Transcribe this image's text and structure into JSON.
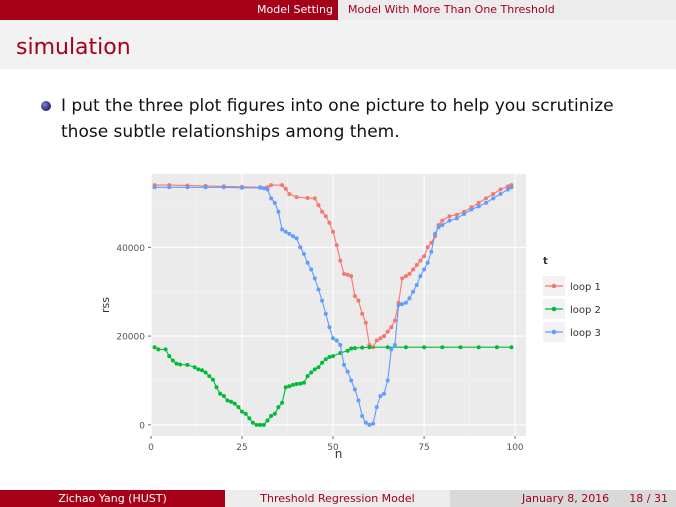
{
  "nav": {
    "section": "Model Setting",
    "subsection": "Model With More Than One Threshold"
  },
  "slide": {
    "title": "simulation",
    "bullet": "I put the three plot figures into one picture to help you scrutinize those subtle relationships among them."
  },
  "footer": {
    "author": "Zichao Yang  (HUST)",
    "talk_title": "Threshold Regression Model",
    "date": "January 8, 2016",
    "page": "18 / 31"
  },
  "colors": {
    "accent": "#a60019",
    "loop1": "#f8766d",
    "loop2": "#00ba38",
    "loop3": "#619cff",
    "panel": "#ebebeb"
  },
  "chart_data": {
    "type": "line",
    "xlabel": "n",
    "ylabel": "rss",
    "legend_title": "t",
    "legend_position": "right",
    "grid": true,
    "xlim": [
      0,
      103
    ],
    "ylim": [
      -2500,
      56500
    ],
    "xticks": [
      0,
      25,
      50,
      75,
      100
    ],
    "yticks": [
      0,
      20000,
      40000
    ],
    "series": [
      {
        "name": "loop 1",
        "color": "#f8766d",
        "points": [
          [
            1,
            54000
          ],
          [
            5,
            54000
          ],
          [
            10,
            53900
          ],
          [
            15,
            53800
          ],
          [
            20,
            53700
          ],
          [
            25,
            53600
          ],
          [
            30,
            53500
          ],
          [
            32,
            53500
          ],
          [
            33,
            54000
          ],
          [
            36,
            54000
          ],
          [
            37,
            53200
          ],
          [
            38,
            52000
          ],
          [
            40,
            51300
          ],
          [
            43,
            51100
          ],
          [
            45,
            51000
          ],
          [
            46,
            49500
          ],
          [
            47,
            48000
          ],
          [
            48,
            47000
          ],
          [
            49,
            45500
          ],
          [
            50,
            43500
          ],
          [
            51,
            40500
          ],
          [
            52,
            37000
          ],
          [
            53,
            34000
          ],
          [
            54,
            33800
          ],
          [
            55,
            33500
          ],
          [
            56,
            29000
          ],
          [
            57,
            28000
          ],
          [
            58,
            25000
          ],
          [
            59,
            23000
          ],
          [
            60,
            18000
          ],
          [
            61,
            17500
          ],
          [
            62,
            19000
          ],
          [
            63,
            19500
          ],
          [
            64,
            20000
          ],
          [
            65,
            21000
          ],
          [
            66,
            22000
          ],
          [
            67,
            23500
          ],
          [
            68,
            27500
          ],
          [
            69,
            33000
          ],
          [
            70,
            33500
          ],
          [
            71,
            34000
          ],
          [
            72,
            35000
          ],
          [
            73,
            36000
          ],
          [
            74,
            37000
          ],
          [
            75,
            38000
          ],
          [
            76,
            40000
          ],
          [
            77,
            41000
          ],
          [
            78,
            42500
          ],
          [
            79,
            45000
          ],
          [
            80,
            46000
          ],
          [
            82,
            47000
          ],
          [
            84,
            47300
          ],
          [
            86,
            48000
          ],
          [
            88,
            49000
          ],
          [
            90,
            50000
          ],
          [
            92,
            51000
          ],
          [
            94,
            52000
          ],
          [
            96,
            53000
          ],
          [
            98,
            53700
          ],
          [
            99,
            54000
          ]
        ]
      },
      {
        "name": "loop 2",
        "color": "#00ba38",
        "points": [
          [
            1,
            17500
          ],
          [
            2,
            17000
          ],
          [
            4,
            17000
          ],
          [
            5,
            15500
          ],
          [
            6,
            14500
          ],
          [
            7,
            13800
          ],
          [
            8,
            13600
          ],
          [
            10,
            13500
          ],
          [
            12,
            13000
          ],
          [
            13,
            12500
          ],
          [
            14,
            12300
          ],
          [
            15,
            11800
          ],
          [
            16,
            11000
          ],
          [
            17,
            10200
          ],
          [
            18,
            8500
          ],
          [
            19,
            7000
          ],
          [
            20,
            6500
          ],
          [
            21,
            5500
          ],
          [
            22,
            5200
          ],
          [
            23,
            4800
          ],
          [
            24,
            4000
          ],
          [
            25,
            3000
          ],
          [
            26,
            2500
          ],
          [
            27,
            1500
          ],
          [
            28,
            500
          ],
          [
            29,
            0
          ],
          [
            30,
            0
          ],
          [
            31,
            0
          ],
          [
            32,
            1000
          ],
          [
            33,
            2000
          ],
          [
            34,
            2500
          ],
          [
            35,
            4000
          ],
          [
            36,
            5000
          ],
          [
            37,
            8500
          ],
          [
            38,
            8700
          ],
          [
            39,
            9000
          ],
          [
            40,
            9200
          ],
          [
            41,
            9300
          ],
          [
            42,
            9500
          ],
          [
            43,
            11000
          ],
          [
            44,
            11800
          ],
          [
            45,
            12500
          ],
          [
            46,
            13000
          ],
          [
            47,
            14000
          ],
          [
            48,
            14800
          ],
          [
            49,
            15300
          ],
          [
            50,
            15500
          ],
          [
            52,
            16200
          ],
          [
            54,
            16700
          ],
          [
            55,
            17200
          ],
          [
            56,
            17300
          ],
          [
            58,
            17400
          ],
          [
            60,
            17500
          ],
          [
            65,
            17500
          ],
          [
            70,
            17500
          ],
          [
            75,
            17500
          ],
          [
            80,
            17500
          ],
          [
            85,
            17500
          ],
          [
            90,
            17500
          ],
          [
            95,
            17500
          ],
          [
            99,
            17500
          ]
        ]
      },
      {
        "name": "loop 3",
        "color": "#619cff",
        "points": [
          [
            1,
            53500
          ],
          [
            5,
            53500
          ],
          [
            10,
            53500
          ],
          [
            15,
            53500
          ],
          [
            20,
            53500
          ],
          [
            25,
            53400
          ],
          [
            30,
            53400
          ],
          [
            31,
            53300
          ],
          [
            32,
            53000
          ],
          [
            33,
            51000
          ],
          [
            34,
            50000
          ],
          [
            35,
            48000
          ],
          [
            36,
            44000
          ],
          [
            37,
            43500
          ],
          [
            38,
            43000
          ],
          [
            39,
            42500
          ],
          [
            40,
            42000
          ],
          [
            41,
            40000
          ],
          [
            42,
            38500
          ],
          [
            43,
            36500
          ],
          [
            44,
            35000
          ],
          [
            45,
            33000
          ],
          [
            46,
            30500
          ],
          [
            47,
            28000
          ],
          [
            48,
            25000
          ],
          [
            49,
            22000
          ],
          [
            50,
            19500
          ],
          [
            51,
            19000
          ],
          [
            52,
            18000
          ],
          [
            53,
            13500
          ],
          [
            54,
            12000
          ],
          [
            55,
            10000
          ],
          [
            56,
            8000
          ],
          [
            57,
            5500
          ],
          [
            58,
            2000
          ],
          [
            59,
            500
          ],
          [
            60,
            0
          ],
          [
            61,
            300
          ],
          [
            62,
            4000
          ],
          [
            63,
            6500
          ],
          [
            64,
            7000
          ],
          [
            65,
            10000
          ],
          [
            66,
            17000
          ],
          [
            67,
            18000
          ],
          [
            68,
            27000
          ],
          [
            69,
            27200
          ],
          [
            70,
            27500
          ],
          [
            71,
            28500
          ],
          [
            72,
            30000
          ],
          [
            73,
            31500
          ],
          [
            74,
            33500
          ],
          [
            75,
            35000
          ],
          [
            76,
            36500
          ],
          [
            77,
            39000
          ],
          [
            78,
            43000
          ],
          [
            79,
            44500
          ],
          [
            80,
            45000
          ],
          [
            82,
            46000
          ],
          [
            84,
            46500
          ],
          [
            86,
            47500
          ],
          [
            88,
            48500
          ],
          [
            90,
            49200
          ],
          [
            92,
            50000
          ],
          [
            94,
            51000
          ],
          [
            96,
            52000
          ],
          [
            98,
            53000
          ],
          [
            99,
            53500
          ]
        ]
      }
    ]
  }
}
